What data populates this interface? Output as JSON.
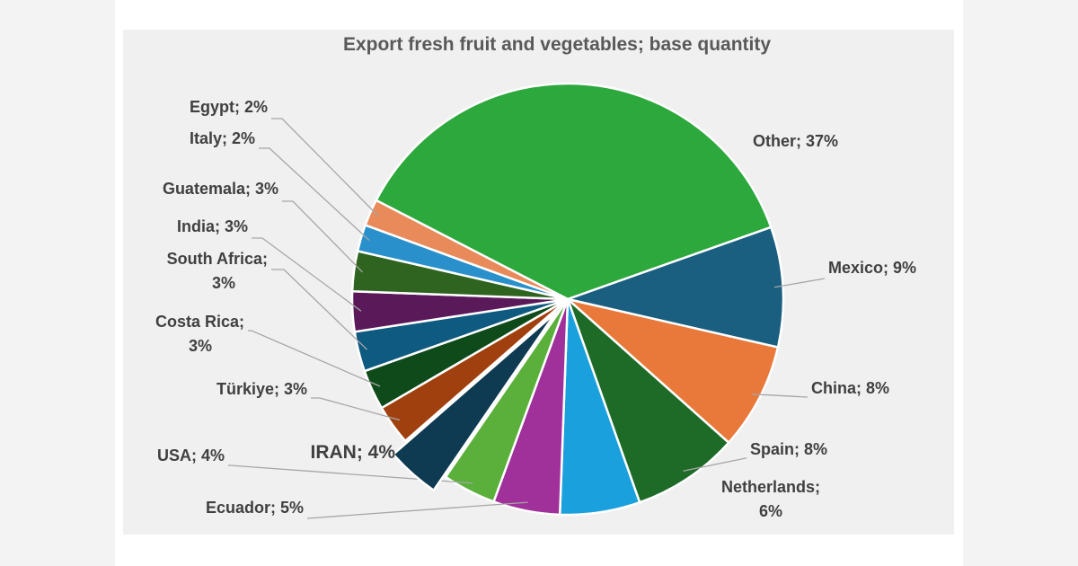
{
  "chart_data": {
    "type": "pie",
    "title": "Export fresh fruit and vegetables; base quantity",
    "values": [
      37,
      9,
      8,
      8,
      6,
      5,
      4,
      4,
      3,
      3,
      3,
      3,
      3,
      2,
      2
    ],
    "value_labels": [
      "Other; 37%",
      "Mexico; 9%",
      "China; 8%",
      "Spain; 8%",
      "Netherlands; 6%",
      "Ecuador; 5%",
      "USA; 4%",
      "IRAN; 4%",
      "Türkiye; 3%",
      "Costa Rica; 3%",
      "South Africa; 3%",
      "India; 3%",
      "Guatemala; 3%",
      "Italy; 2%",
      "Egypt; 2%"
    ],
    "colors": [
      "#2ca83c",
      "#1a5f80",
      "#e8793a",
      "#1e6b28",
      "#1aa0dc",
      "#a0309a",
      "#5ab03a",
      "#0e3a52",
      "#a0400e",
      "#0f4a1a",
      "#0f5a80",
      "#5a1a5a",
      "#2e6420",
      "#2a90cc",
      "#e88a5a"
    ],
    "exploded": [
      7
    ]
  }
}
